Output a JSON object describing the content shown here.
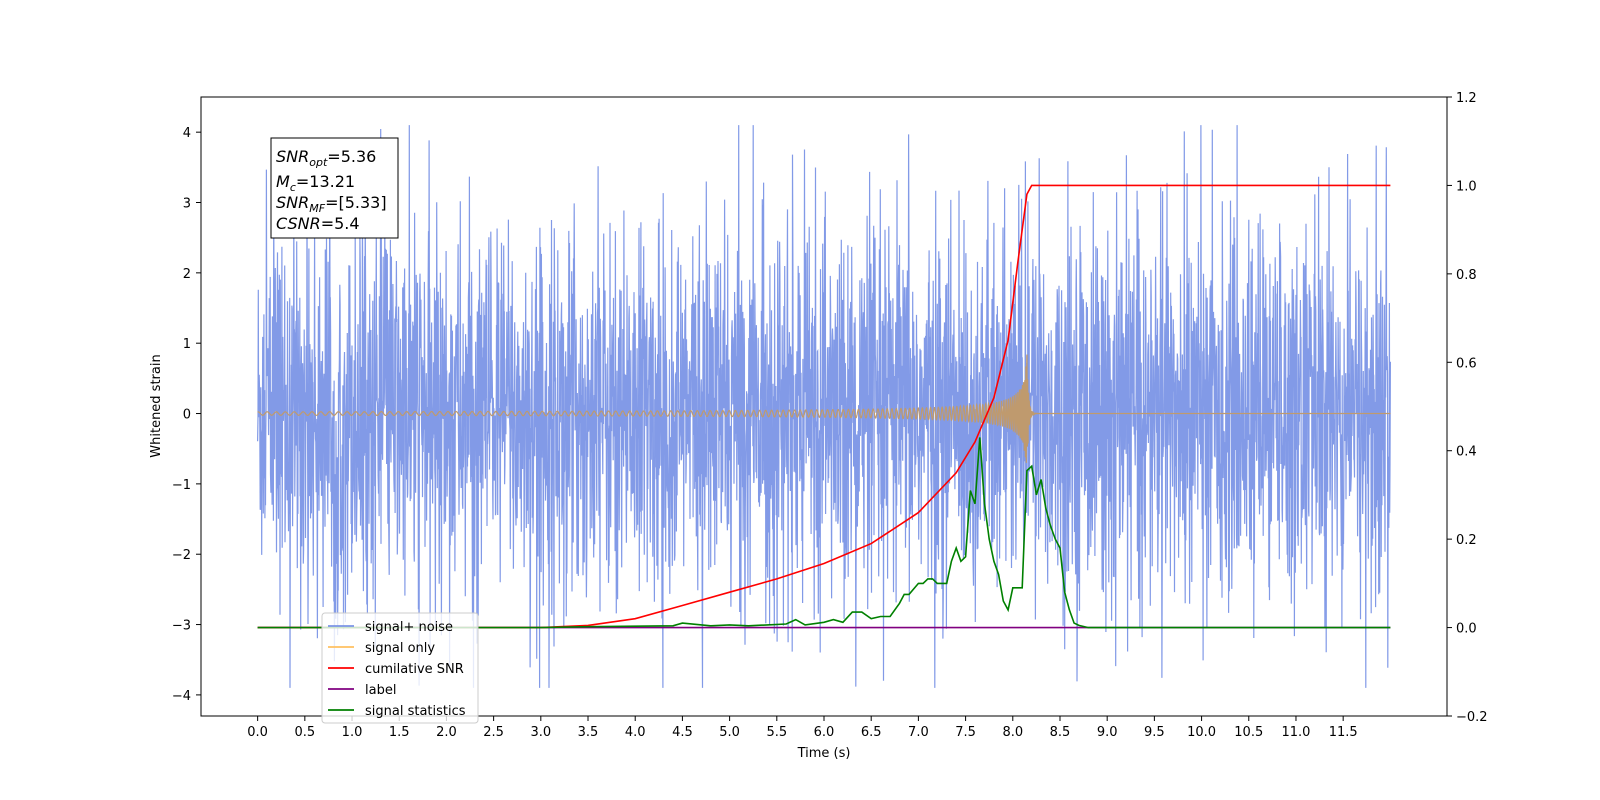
{
  "chart_data": {
    "type": "line",
    "title": "",
    "xlabel": "Time (s)",
    "ylabel": "Whitened strain",
    "y2label": "",
    "xlim": [
      -0.6,
      12.6
    ],
    "ylim": [
      -4.3,
      4.5
    ],
    "y2lim": [
      -0.2,
      1.2
    ],
    "xticks": [
      "0.0",
      "0.5",
      "1.0",
      "1.5",
      "2.0",
      "2.5",
      "3.0",
      "3.5",
      "4.0",
      "4.5",
      "5.0",
      "5.5",
      "6.0",
      "6.5",
      "7.0",
      "7.5",
      "8.0",
      "8.5",
      "9.0",
      "9.5",
      "10.0",
      "10.5",
      "11.0",
      "11.5"
    ],
    "yticks": [
      "4",
      "3",
      "2",
      "1",
      "0",
      "−1",
      "−2",
      "−3",
      "−4"
    ],
    "y2ticks": [
      "1.2",
      "1.0",
      "0.8",
      "0.6",
      "0.4",
      "0.2",
      "0.0",
      "−0.2"
    ],
    "grid": false,
    "legend_position": "lower-left",
    "annotations": {
      "snr_opt": {
        "base": "SNR",
        "sub": "opt",
        "value": "=5.36"
      },
      "mc": {
        "base": "M",
        "sub": "c",
        "value": "=13.21"
      },
      "snr_mf": {
        "base": "SNR",
        "sub": "MF",
        "value": "=[5.33]"
      },
      "csnr": {
        "base": "CSNR",
        "sub": "",
        "value": "=5.4"
      }
    },
    "series": [
      {
        "name": "signal+ noise",
        "axis": "left",
        "color": "#7b95e6",
        "description": "whitened noise, roughly ±2.3 envelope with spikes up to ±4.1, from t=0 to t=12",
        "x_range": [
          0,
          12
        ],
        "envelope": 2.3,
        "max_abs": 4.1
      },
      {
        "name": "signal only",
        "axis": "left",
        "color": "#ffc060",
        "description": "chirp signal growing from ~0 to peak amplitude ~0.9 at merger t≈8.15 s",
        "x_range": [
          0,
          12
        ],
        "merger_time": 8.15,
        "peak": 0.9
      },
      {
        "name": "cumilative SNR",
        "axis": "right",
        "color": "#ff0000",
        "x": [
          0.0,
          3.0,
          3.5,
          4.0,
          4.5,
          5.0,
          5.5,
          6.0,
          6.5,
          7.0,
          7.4,
          7.6,
          7.8,
          7.95,
          8.05,
          8.15,
          8.2,
          12.0
        ],
        "values": [
          0.0,
          0.0,
          0.005,
          0.02,
          0.05,
          0.08,
          0.11,
          0.145,
          0.19,
          0.26,
          0.35,
          0.42,
          0.52,
          0.65,
          0.82,
          0.98,
          1.0,
          1.0
        ]
      },
      {
        "name": "label",
        "axis": "right",
        "color": "#800080",
        "x": [
          0.0,
          12.0
        ],
        "values": [
          0.0,
          0.0
        ]
      },
      {
        "name": "signal statistics",
        "axis": "right",
        "color": "#008000",
        "x": [
          0.0,
          3.0,
          3.5,
          4.0,
          4.4,
          4.5,
          4.8,
          5.0,
          5.2,
          5.4,
          5.6,
          5.7,
          5.8,
          6.0,
          6.1,
          6.2,
          6.3,
          6.4,
          6.5,
          6.6,
          6.7,
          6.8,
          6.85,
          6.9,
          7.0,
          7.05,
          7.1,
          7.15,
          7.2,
          7.3,
          7.35,
          7.4,
          7.45,
          7.5,
          7.55,
          7.6,
          7.65,
          7.7,
          7.75,
          7.8,
          7.85,
          7.9,
          7.95,
          8.0,
          8.05,
          8.1,
          8.15,
          8.2,
          8.25,
          8.3,
          8.35,
          8.4,
          8.45,
          8.5,
          8.55,
          8.6,
          8.65,
          8.7,
          8.8,
          8.9,
          9.0,
          12.0
        ],
        "values": [
          0.0,
          0.0,
          0.002,
          0.003,
          0.004,
          0.01,
          0.004,
          0.006,
          0.004,
          0.006,
          0.008,
          0.018,
          0.006,
          0.012,
          0.018,
          0.012,
          0.035,
          0.035,
          0.02,
          0.025,
          0.025,
          0.055,
          0.075,
          0.075,
          0.1,
          0.1,
          0.11,
          0.11,
          0.1,
          0.1,
          0.15,
          0.18,
          0.15,
          0.16,
          0.31,
          0.28,
          0.43,
          0.28,
          0.2,
          0.15,
          0.12,
          0.06,
          0.04,
          0.09,
          0.09,
          0.09,
          0.355,
          0.365,
          0.3,
          0.335,
          0.27,
          0.23,
          0.2,
          0.18,
          0.08,
          0.04,
          0.01,
          0.005,
          0.0,
          0.0,
          0.0,
          0.0
        ]
      }
    ]
  }
}
